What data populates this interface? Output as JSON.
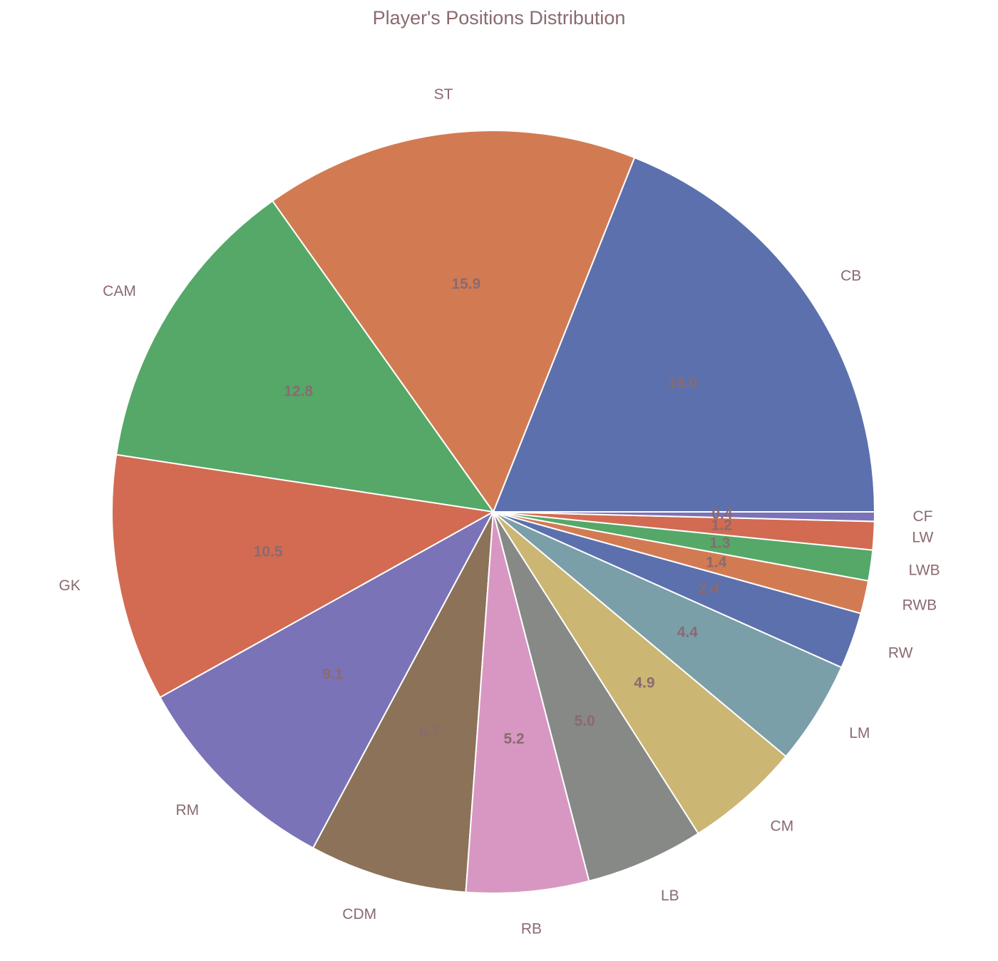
{
  "chart_data": {
    "type": "pie",
    "title": "Player's Positions Distribution",
    "start_angle_deg": 0,
    "direction": "counterclockwise",
    "slices": [
      {
        "label": "CB",
        "value": 19.0,
        "value_label": "19.0",
        "color": "#5c70ae"
      },
      {
        "label": "ST",
        "value": 15.9,
        "value_label": "15.9",
        "color": "#d27b53"
      },
      {
        "label": "CAM",
        "value": 12.8,
        "value_label": "12.8",
        "color": "#55a868"
      },
      {
        "label": "GK",
        "value": 10.5,
        "value_label": "10.5",
        "color": "#d26b51"
      },
      {
        "label": "RM",
        "value": 9.1,
        "value_label": "9.1",
        "color": "#7a73b8"
      },
      {
        "label": "CDM",
        "value": 6.7,
        "value_label": "6.7",
        "color": "#8c7259"
      },
      {
        "label": "RB",
        "value": 5.2,
        "value_label": "5.2",
        "color": "#d897c3"
      },
      {
        "label": "LB",
        "value": 5.0,
        "value_label": "5.0",
        "color": "#868985"
      },
      {
        "label": "CM",
        "value": 4.9,
        "value_label": "4.9",
        "color": "#ccb674"
      },
      {
        "label": "LM",
        "value": 4.4,
        "value_label": "4.4",
        "color": "#7a9fa8"
      },
      {
        "label": "RW",
        "value": 2.4,
        "value_label": "2.4",
        "color": "#5c70ae"
      },
      {
        "label": "RWB",
        "value": 1.4,
        "value_label": "1.4",
        "color": "#d27b53"
      },
      {
        "label": "LWB",
        "value": 1.3,
        "value_label": "1.3",
        "color": "#55a868"
      },
      {
        "label": "LW",
        "value": 1.2,
        "value_label": "1.2",
        "color": "#d26b51"
      },
      {
        "label": "CF",
        "value": 0.4,
        "value_label": "0.4",
        "color": "#7a73b8"
      }
    ]
  }
}
